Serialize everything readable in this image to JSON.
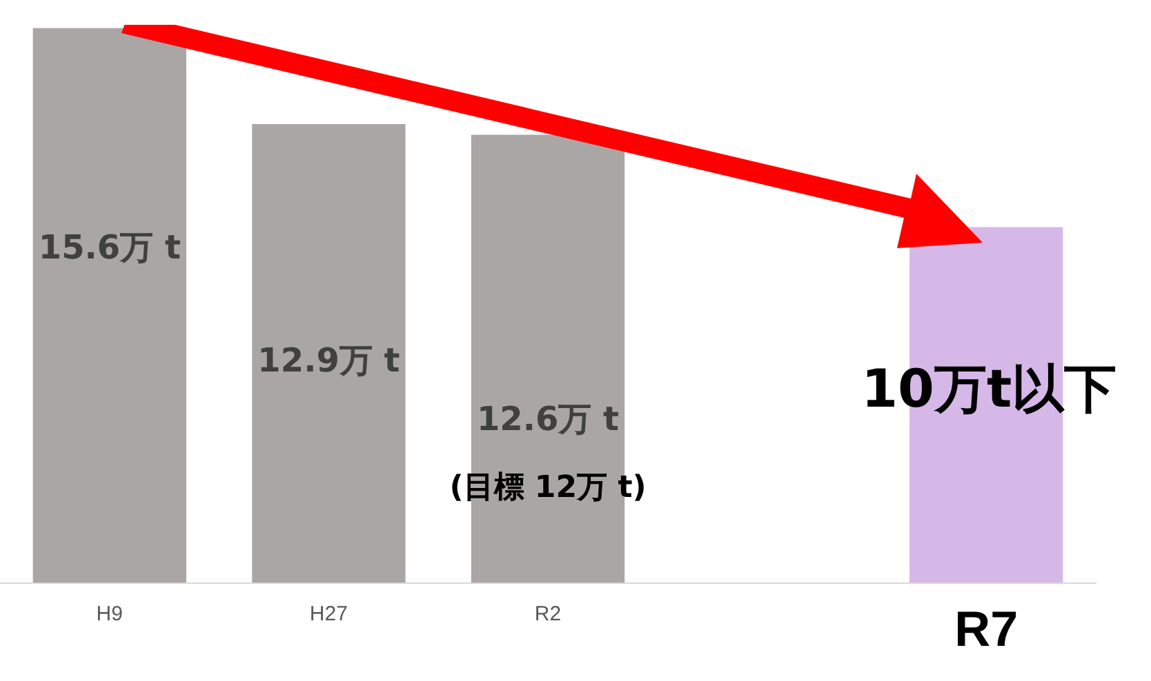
{
  "chart_data": {
    "type": "bar",
    "categories": [
      "H9",
      "H27",
      "R2",
      null,
      "R7"
    ],
    "values": [
      15.6,
      12.9,
      12.6,
      null,
      10
    ],
    "colors": [
      "#aaa6a5",
      "#aaa6a5",
      "#aaa6a5",
      "#aaa6a5",
      "#d5b8e8"
    ],
    "value_labels": [
      "15.6万 t",
      "12.9万 t",
      "12.6万 t",
      null,
      "10万t以下"
    ],
    "annotations": [
      "(目標 12万 t)"
    ],
    "grid": false,
    "legend": false
  }
}
